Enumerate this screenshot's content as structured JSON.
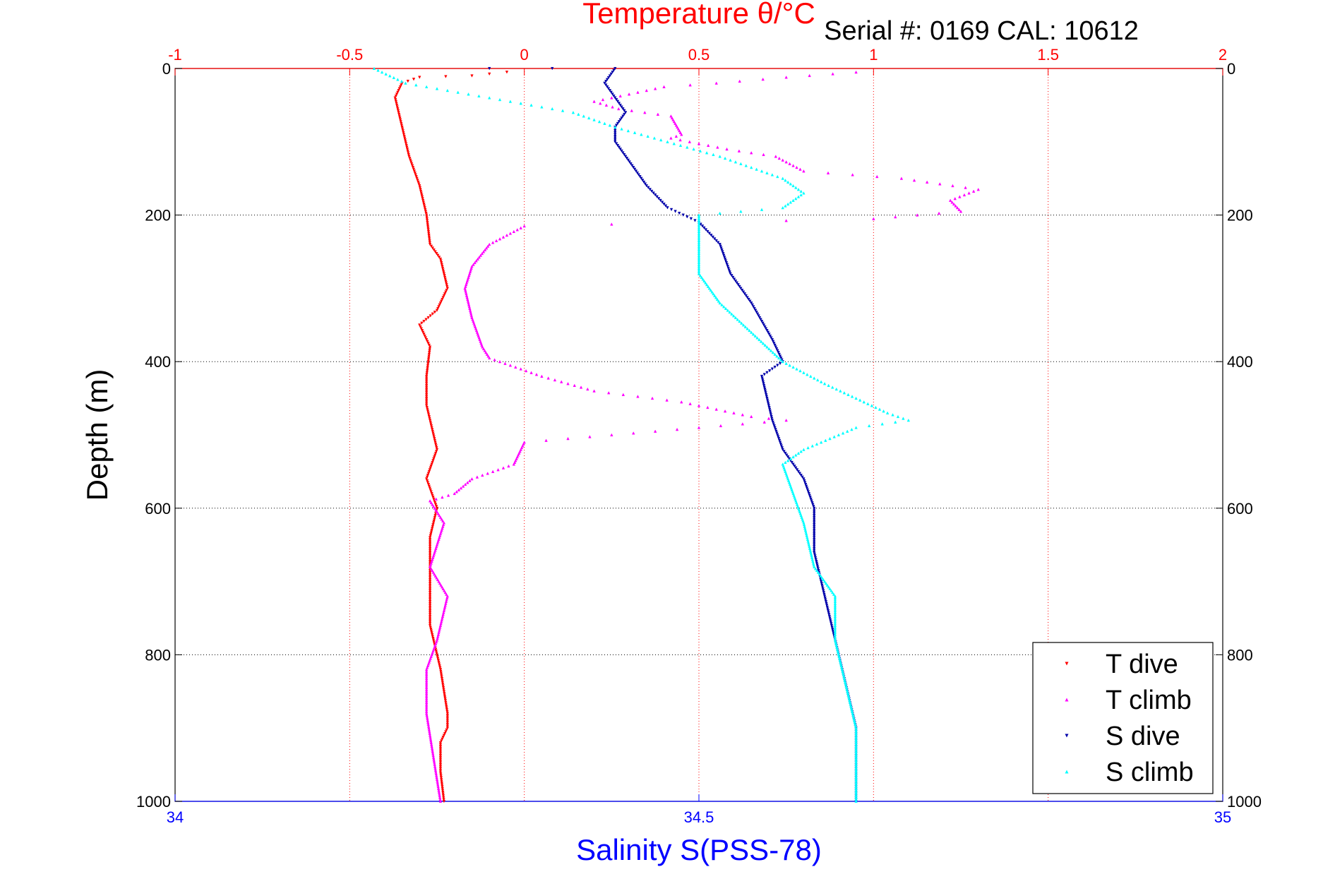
{
  "chart_data": {
    "type": "scatter",
    "title": "Temperature θ/°C",
    "subtitle": "Serial #: 0169 CAL: 10612",
    "xlabel": "Salinity S(PSS-78)",
    "ylabel": "Depth (m)",
    "x_temp_lim": [
      -1,
      2
    ],
    "x_temp_ticks": [
      "-1",
      "-0.5",
      "0",
      "0.5",
      "1",
      "1.5",
      "2"
    ],
    "x_sal_lim": [
      34,
      35
    ],
    "x_sal_ticks": [
      "34",
      "34.5",
      "35"
    ],
    "ylim": [
      0,
      1000
    ],
    "y_ticks": [
      "0",
      "200",
      "400",
      "600",
      "800",
      "1000"
    ],
    "y_reversed": true,
    "grid": true,
    "legend_position": "bottom-right",
    "colors": {
      "temperature_axis": "#ff0000",
      "salinity_axis": "#0000ff",
      "t_dive": "#ff0000",
      "t_climb": "#ff00ff",
      "s_dive": "#0000aa",
      "s_climb": "#00ffff"
    },
    "series": [
      {
        "name": "T dive",
        "axis": "temperature",
        "marker": "down-triangle",
        "color": "#ff0000",
        "points": [
          [
            -0.05,
            5
          ],
          [
            -0.15,
            10
          ],
          [
            -0.3,
            12
          ],
          [
            -0.35,
            20
          ],
          [
            -0.37,
            40
          ],
          [
            -0.35,
            80
          ],
          [
            -0.33,
            120
          ],
          [
            -0.3,
            160
          ],
          [
            -0.28,
            200
          ],
          [
            -0.27,
            240
          ],
          [
            -0.24,
            260
          ],
          [
            -0.22,
            300
          ],
          [
            -0.25,
            330
          ],
          [
            -0.3,
            350
          ],
          [
            -0.27,
            380
          ],
          [
            -0.28,
            420
          ],
          [
            -0.28,
            460
          ],
          [
            -0.25,
            520
          ],
          [
            -0.28,
            560
          ],
          [
            -0.25,
            600
          ],
          [
            -0.27,
            640
          ],
          [
            -0.27,
            700
          ],
          [
            -0.27,
            760
          ],
          [
            -0.24,
            820
          ],
          [
            -0.22,
            880
          ],
          [
            -0.22,
            900
          ],
          [
            -0.24,
            920
          ],
          [
            -0.24,
            960
          ],
          [
            -0.23,
            1000
          ]
        ]
      },
      {
        "name": "T climb",
        "axis": "temperature",
        "marker": "up-triangle",
        "color": "#ff00ff",
        "points": [
          [
            0.95,
            5
          ],
          [
            0.75,
            12
          ],
          [
            0.55,
            20
          ],
          [
            0.4,
            25
          ],
          [
            0.2,
            45
          ],
          [
            0.27,
            55
          ],
          [
            0.42,
            65
          ],
          [
            0.45,
            90
          ],
          [
            0.42,
            95
          ],
          [
            0.58,
            110
          ],
          [
            0.72,
            120
          ],
          [
            0.8,
            140
          ],
          [
            1.08,
            150
          ],
          [
            1.3,
            165
          ],
          [
            1.22,
            180
          ],
          [
            1.25,
            195
          ],
          [
            1.0,
            205
          ],
          [
            0.0,
            215
          ],
          [
            -0.1,
            240
          ],
          [
            -0.15,
            270
          ],
          [
            -0.17,
            300
          ],
          [
            -0.15,
            340
          ],
          [
            -0.12,
            380
          ],
          [
            -0.1,
            395
          ],
          [
            0.05,
            420
          ],
          [
            0.2,
            440
          ],
          [
            0.45,
            455
          ],
          [
            0.65,
            475
          ],
          [
            0.75,
            480
          ],
          [
            0.0,
            510
          ],
          [
            -0.03,
            540
          ],
          [
            -0.15,
            560
          ],
          [
            -0.2,
            580
          ],
          [
            -0.27,
            590
          ],
          [
            -0.23,
            620
          ],
          [
            -0.27,
            680
          ],
          [
            -0.22,
            720
          ],
          [
            -0.25,
            780
          ],
          [
            -0.28,
            820
          ],
          [
            -0.28,
            880
          ],
          [
            -0.26,
            940
          ],
          [
            -0.24,
            1000
          ]
        ]
      },
      {
        "name": "S dive",
        "axis": "salinity",
        "marker": "down-triangle",
        "color": "#0000aa",
        "points": [
          [
            34.3,
            0
          ],
          [
            34.42,
            0
          ],
          [
            34.41,
            20
          ],
          [
            34.42,
            40
          ],
          [
            34.43,
            60
          ],
          [
            34.42,
            80
          ],
          [
            34.42,
            100
          ],
          [
            34.43,
            120
          ],
          [
            34.45,
            160
          ],
          [
            34.47,
            190
          ],
          [
            34.5,
            210
          ],
          [
            34.52,
            240
          ],
          [
            34.53,
            280
          ],
          [
            34.55,
            320
          ],
          [
            34.57,
            370
          ],
          [
            34.58,
            400
          ],
          [
            34.56,
            420
          ],
          [
            34.57,
            480
          ],
          [
            34.58,
            520
          ],
          [
            34.6,
            560
          ],
          [
            34.61,
            600
          ],
          [
            34.61,
            660
          ],
          [
            34.62,
            720
          ],
          [
            34.63,
            780
          ],
          [
            34.64,
            840
          ],
          [
            34.65,
            900
          ],
          [
            34.65,
            960
          ],
          [
            34.65,
            1000
          ]
        ]
      },
      {
        "name": "S climb",
        "axis": "salinity",
        "marker": "up-triangle",
        "color": "#00ffff",
        "points": [
          [
            34.19,
            0
          ],
          [
            34.22,
            20
          ],
          [
            34.3,
            40
          ],
          [
            34.38,
            60
          ],
          [
            34.42,
            80
          ],
          [
            34.47,
            100
          ],
          [
            34.52,
            120
          ],
          [
            34.58,
            150
          ],
          [
            34.6,
            170
          ],
          [
            34.58,
            190
          ],
          [
            34.5,
            200
          ],
          [
            34.5,
            240
          ],
          [
            34.5,
            280
          ],
          [
            34.52,
            320
          ],
          [
            34.55,
            360
          ],
          [
            34.58,
            400
          ],
          [
            34.62,
            430
          ],
          [
            34.65,
            450
          ],
          [
            34.68,
            470
          ],
          [
            34.7,
            480
          ],
          [
            34.65,
            490
          ],
          [
            34.6,
            520
          ],
          [
            34.58,
            540
          ],
          [
            34.59,
            580
          ],
          [
            34.6,
            620
          ],
          [
            34.61,
            680
          ],
          [
            34.63,
            720
          ],
          [
            34.63,
            780
          ],
          [
            34.64,
            840
          ],
          [
            34.65,
            900
          ],
          [
            34.65,
            960
          ],
          [
            34.65,
            1000
          ]
        ]
      }
    ],
    "legend": [
      "T dive",
      "T climb",
      "S dive",
      "S climb"
    ]
  }
}
